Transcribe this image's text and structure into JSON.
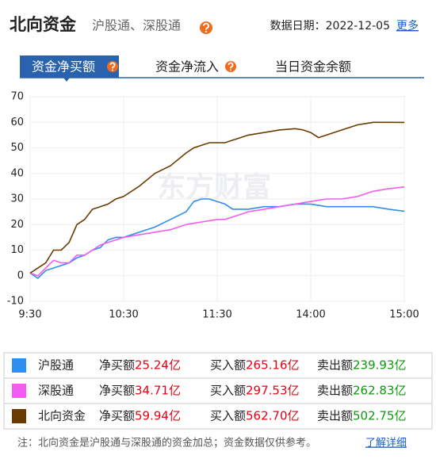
{
  "header": {
    "title": "北向资金",
    "subtitle": "沪股通、深股通",
    "date_label": "数据日期：2022-12-05",
    "more": "更多"
  },
  "tabs": [
    "资金净买额",
    "资金净流入",
    "当日资金余额"
  ],
  "chart_data": {
    "type": "line",
    "watermark": "东方财富",
    "x": [
      0,
      5,
      10,
      15,
      20,
      25,
      30,
      35,
      40,
      45,
      50,
      55,
      60,
      70,
      80,
      90,
      100,
      105,
      110,
      115,
      120,
      125,
      130,
      140,
      150,
      160,
      170,
      175,
      180,
      185,
      190,
      200,
      210,
      220,
      230,
      240
    ],
    "xlim": [
      0,
      240
    ],
    "xticks": [
      {
        "value": 0,
        "label": "9:30"
      },
      {
        "value": 60,
        "label": "10:30"
      },
      {
        "value": 120,
        "label": "11:30"
      },
      {
        "value": 180,
        "label": "14:00"
      },
      {
        "value": 240,
        "label": "15:00"
      }
    ],
    "ylim": [
      -10,
      70
    ],
    "yticks": [
      -10,
      0,
      10,
      20,
      30,
      40,
      50,
      60,
      70
    ],
    "grid": true,
    "series": [
      {
        "name": "沪股通",
        "color": "#2f8ef0",
        "values": [
          1,
          -1,
          2,
          3,
          4,
          5,
          7,
          8,
          10,
          11,
          14,
          15,
          15,
          17,
          19,
          22,
          25,
          29,
          30,
          30,
          29,
          28,
          26,
          26,
          27,
          27,
          28,
          28,
          28,
          27.5,
          27,
          27,
          27,
          27,
          26,
          25.24
        ]
      },
      {
        "name": "深股通",
        "color": "#f25cf2",
        "values": [
          1,
          0,
          3,
          6,
          5,
          5,
          8,
          8,
          10,
          12,
          13,
          14,
          15,
          16,
          17,
          18,
          20,
          20.5,
          21,
          21.5,
          22,
          22,
          23,
          25,
          26,
          27,
          28,
          28.5,
          29,
          29.5,
          30,
          30,
          31,
          33,
          34,
          34.71
        ]
      },
      {
        "name": "北向资金",
        "color": "#6b3a00",
        "values": [
          1,
          3,
          5,
          10,
          10,
          13,
          20,
          22,
          26,
          27,
          28,
          30,
          31,
          35,
          40,
          43,
          48,
          50,
          51,
          52,
          52,
          52,
          53,
          55,
          56,
          57,
          57.5,
          57,
          56,
          54,
          55,
          57,
          59,
          60,
          60,
          59.94
        ]
      }
    ]
  },
  "summary": {
    "labels": [
      "净买额",
      "买入额",
      "卖出额"
    ],
    "rows": [
      [
        "25.24亿",
        "265.16亿",
        "239.93亿"
      ],
      [
        "34.71亿",
        "297.53亿",
        "262.83亿"
      ],
      [
        "59.94亿",
        "562.70亿",
        "502.75亿"
      ]
    ]
  },
  "note": {
    "text": "注：北向资金是沪股通与深股通的资金加总；资金数据仅供参考。",
    "link": "了解详细"
  }
}
